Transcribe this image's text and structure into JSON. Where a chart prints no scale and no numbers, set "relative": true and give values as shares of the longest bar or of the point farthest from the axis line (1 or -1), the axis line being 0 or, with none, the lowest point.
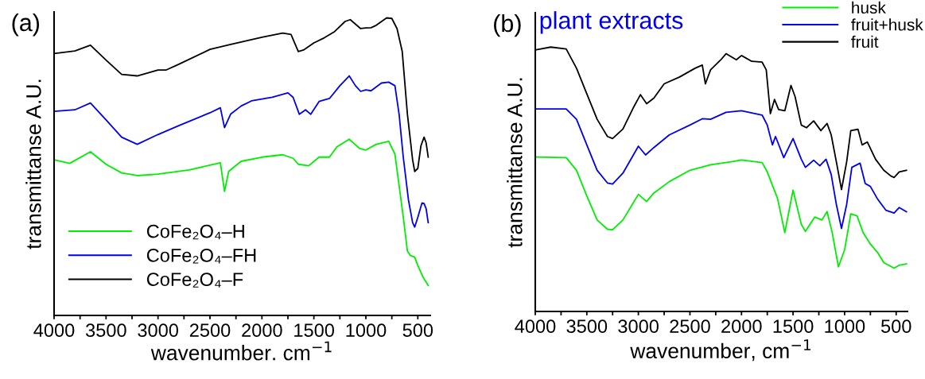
{
  "chart_data": [
    {
      "type": "line",
      "relative": true,
      "xlabel": "wavenumber. cm$^{−1}$",
      "ylabel": "transmittanse A.U.",
      "annotations": [
        "(a)"
      ],
      "xlim": [
        4000,
        380
      ],
      "xticks": [
        4000,
        {
          "value": 3750,
          "label": null
        },
        3500,
        {
          "value": 3250,
          "label": null
        },
        3000,
        {
          "value": 2750,
          "label": null
        },
        2500,
        {
          "value": 2250,
          "label": null
        },
        2000,
        {
          "value": 1750,
          "label": null
        },
        1500,
        {
          "value": 1250,
          "label": null
        },
        1000,
        {
          "value": 750,
          "label": null
        },
        500
      ],
      "tick_labels": "x",
      "grid": false,
      "legend": "bottom left",
      "line_style": "solid",
      "marker": "none",
      "series": [
        {
          "name": "CoFe₂O₄–H",
          "color": "#00ee00",
          "x": [
            4000,
            3850,
            3650,
            3500,
            3350,
            3200,
            3000,
            2700,
            2400,
            2360,
            2320,
            2200,
            2000,
            1800,
            1700,
            1650,
            1550,
            1450,
            1350,
            1280,
            1160,
            1060,
            1000,
            900,
            780,
            720,
            680,
            640,
            600,
            570,
            530,
            500,
            450,
            400
          ],
          "values": [
            0.523,
            0.511,
            0.55,
            0.508,
            0.479,
            0.47,
            0.475,
            0.489,
            0.513,
            0.417,
            0.484,
            0.518,
            0.532,
            0.54,
            0.528,
            0.508,
            0.503,
            0.532,
            0.532,
            0.566,
            0.592,
            0.561,
            0.556,
            0.575,
            0.585,
            0.542,
            0.436,
            0.331,
            0.216,
            0.201,
            0.196,
            0.168,
            0.129,
            0.101
          ]
        },
        {
          "name": "CoFe₂O₄–FH",
          "color": "#0000ee",
          "x": [
            4000,
            3800,
            3650,
            3500,
            3350,
            3200,
            3000,
            2800,
            2500,
            2400,
            2360,
            2300,
            2200,
            2100,
            1900,
            1750,
            1700,
            1640,
            1580,
            1530,
            1450,
            1350,
            1250,
            1160,
            1100,
            1050,
            1000,
            950,
            850,
            780,
            720,
            680,
            640,
            590,
            550,
            530,
            500,
            460,
            440,
            420,
            400
          ],
          "values": [
            0.686,
            0.691,
            0.714,
            0.657,
            0.599,
            0.575,
            0.608,
            0.638,
            0.681,
            0.698,
            0.631,
            0.677,
            0.704,
            0.721,
            0.733,
            0.748,
            0.733,
            0.676,
            0.691,
            0.676,
            0.719,
            0.729,
            0.772,
            0.805,
            0.772,
            0.753,
            0.758,
            0.755,
            0.781,
            0.784,
            0.772,
            0.676,
            0.532,
            0.388,
            0.312,
            0.297,
            0.33,
            0.378,
            0.376,
            0.359,
            0.312
          ]
        },
        {
          "name": "CoFe₂O₄–F",
          "color": "#000000",
          "x": [
            4000,
            3800,
            3650,
            3500,
            3350,
            3200,
            3000,
            2920,
            2800,
            2500,
            2300,
            2000,
            1800,
            1720,
            1650,
            1600,
            1500,
            1400,
            1300,
            1200,
            1150,
            1050,
            1000,
            950,
            900,
            800,
            750,
            700,
            650,
            600,
            550,
            530,
            500,
            470,
            440,
            420,
            400
          ],
          "values": [
            0.88,
            0.889,
            0.908,
            0.858,
            0.81,
            0.805,
            0.825,
            0.825,
            0.844,
            0.894,
            0.911,
            0.935,
            0.949,
            0.944,
            0.887,
            0.892,
            0.916,
            0.933,
            0.954,
            0.988,
            0.994,
            0.964,
            0.966,
            0.967,
            0.975,
            1.0,
            0.998,
            0.964,
            0.887,
            0.676,
            0.523,
            0.484,
            0.494,
            0.57,
            0.599,
            0.58,
            0.532
          ]
        }
      ]
    },
    {
      "type": "line",
      "relative": true,
      "xlabel": "wavenumber, cm$^{−1}$",
      "ylabel": "transmittanse A.U.",
      "annotations": [
        "(b)",
        "plant extracts"
      ],
      "xlim": [
        4000,
        390
      ],
      "xticks": [
        4000,
        {
          "value": 3750,
          "label": null
        },
        3500,
        {
          "value": 3250,
          "label": null
        },
        3000,
        {
          "value": 2750,
          "label": null
        },
        2500,
        {
          "value": 2250,
          "label": null
        },
        2000,
        {
          "value": 1750,
          "label": null
        },
        1500,
        {
          "value": 1250,
          "label": null
        },
        1000,
        {
          "value": 750,
          "label": null
        },
        500
      ],
      "tick_labels": "x",
      "grid": false,
      "legend": "top right",
      "line_style": "solid",
      "marker": "none",
      "series": [
        {
          "name": "husk",
          "color": "#00ee00",
          "x": [
            4000,
            3700,
            3600,
            3500,
            3400,
            3300,
            3250,
            3150,
            3000,
            2920,
            2850,
            2700,
            2500,
            2300,
            2100,
            2000,
            1800,
            1750,
            1650,
            1580,
            1500,
            1420,
            1380,
            1290,
            1220,
            1170,
            1120,
            1060,
            1000,
            940,
            880,
            820,
            750,
            680,
            620,
            520,
            470,
            400
          ],
          "values": [
            0.584,
            0.582,
            0.534,
            0.437,
            0.346,
            0.311,
            0.309,
            0.346,
            0.443,
            0.416,
            0.448,
            0.491,
            0.534,
            0.555,
            0.566,
            0.573,
            0.563,
            0.528,
            0.427,
            0.298,
            0.459,
            0.33,
            0.303,
            0.357,
            0.346,
            0.378,
            0.298,
            0.169,
            0.233,
            0.369,
            0.362,
            0.298,
            0.255,
            0.223,
            0.185,
            0.164,
            0.175,
            0.18
          ]
        },
        {
          "name": "fruit+husk",
          "color": "#0000ee",
          "x": [
            4000,
            3700,
            3600,
            3500,
            3400,
            3300,
            3250,
            3150,
            3000,
            2930,
            2850,
            2700,
            2500,
            2380,
            2300,
            2150,
            2000,
            1800,
            1750,
            1700,
            1670,
            1590,
            1500,
            1420,
            1380,
            1300,
            1240,
            1180,
            1130,
            1080,
            1030,
            980,
            930,
            850,
            800,
            750,
            680,
            600,
            520,
            470,
            400
          ],
          "values": [
            0.766,
            0.766,
            0.727,
            0.63,
            0.534,
            0.486,
            0.482,
            0.523,
            0.625,
            0.592,
            0.62,
            0.668,
            0.705,
            0.729,
            0.727,
            0.753,
            0.759,
            0.743,
            0.705,
            0.63,
            0.662,
            0.582,
            0.654,
            0.576,
            0.545,
            0.572,
            0.551,
            0.576,
            0.518,
            0.405,
            0.314,
            0.405,
            0.545,
            0.561,
            0.484,
            0.473,
            0.425,
            0.383,
            0.372,
            0.393,
            0.377
          ]
        },
        {
          "name": "fruit",
          "color": "#000000",
          "x": [
            4000,
            3850,
            3700,
            3600,
            3500,
            3400,
            3300,
            3250,
            3150,
            3050,
            2980,
            2920,
            2850,
            2750,
            2600,
            2450,
            2380,
            2350,
            2300,
            2200,
            2150,
            2050,
            2000,
            1900,
            1800,
            1760,
            1720,
            1680,
            1640,
            1580,
            1520,
            1480,
            1420,
            1370,
            1300,
            1230,
            1170,
            1130,
            1080,
            1030,
            980,
            940,
            870,
            830,
            780,
            700,
            620,
            550,
            520,
            470,
            400
          ],
          "values": [
            0.989,
            1.0,
            0.993,
            0.92,
            0.823,
            0.727,
            0.662,
            0.654,
            0.69,
            0.77,
            0.82,
            0.786,
            0.807,
            0.861,
            0.887,
            0.92,
            0.932,
            0.861,
            0.914,
            0.952,
            0.975,
            0.952,
            0.968,
            0.946,
            0.943,
            0.914,
            0.748,
            0.802,
            0.764,
            0.759,
            0.855,
            0.812,
            0.705,
            0.695,
            0.721,
            0.684,
            0.711,
            0.668,
            0.566,
            0.461,
            0.566,
            0.684,
            0.689,
            0.63,
            0.641,
            0.576,
            0.534,
            0.512,
            0.507,
            0.528,
            0.534
          ]
        }
      ]
    }
  ]
}
